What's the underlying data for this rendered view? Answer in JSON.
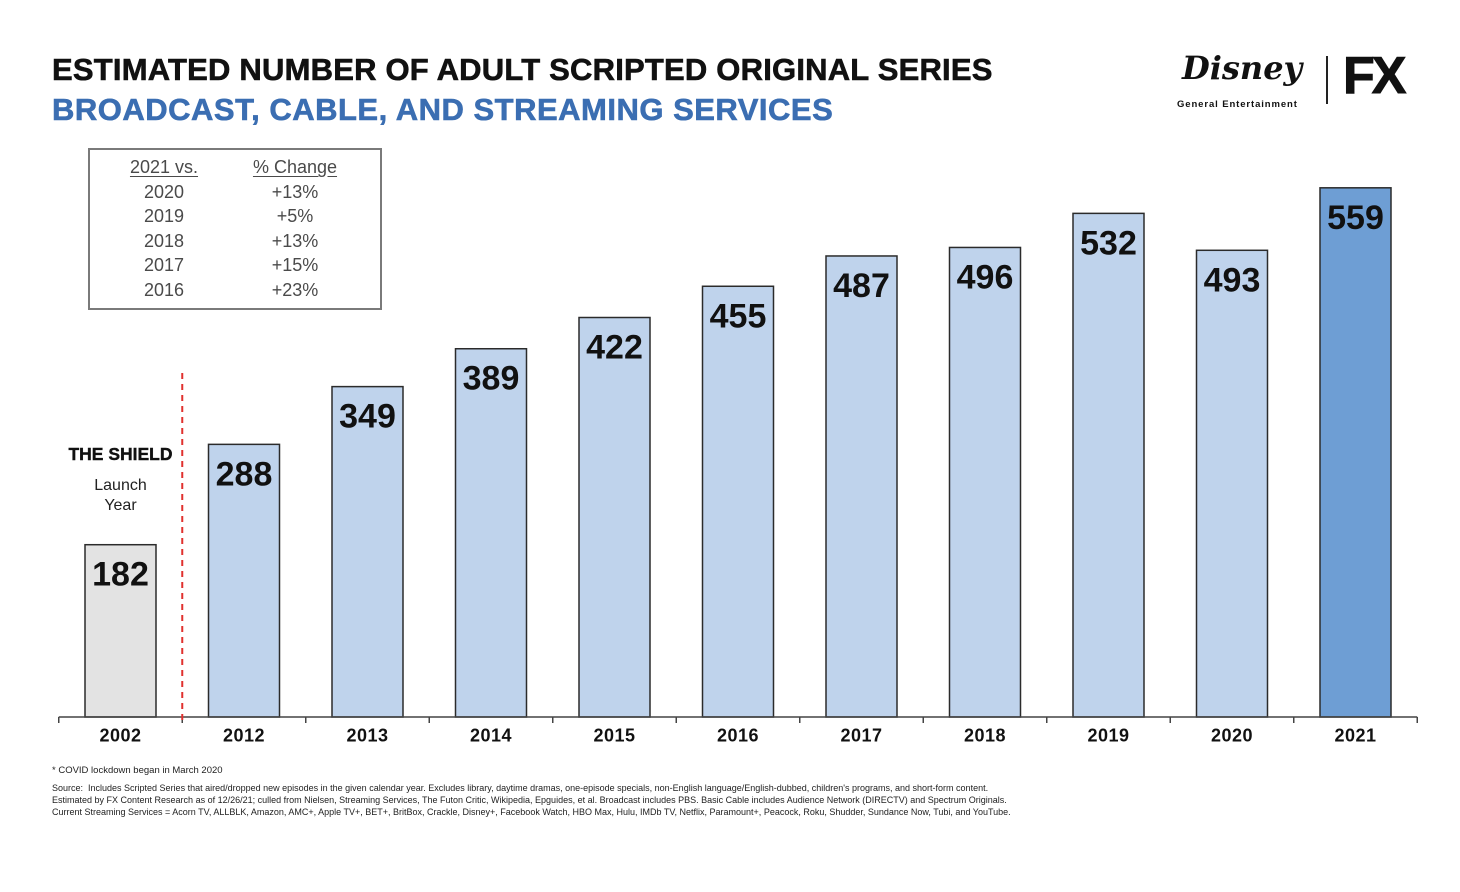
{
  "chart_data": {
    "type": "bar",
    "title": "ESTIMATED NUMBER OF ADULT SCRIPTED ORIGINAL SERIES",
    "subtitle": "BROADCAST, CABLE, AND STREAMING SERVICES",
    "categories": [
      "2002",
      "2012",
      "2013",
      "2014",
      "2015",
      "2016",
      "2017",
      "2018",
      "2019",
      "2020",
      "2021"
    ],
    "values": [
      182,
      288,
      349,
      389,
      422,
      455,
      487,
      496,
      532,
      493,
      559
    ],
    "ylim": [
      0,
      600
    ],
    "grid": false,
    "data_labels": true,
    "y_axis_visible": false,
    "bar_colors": [
      "#e3e3e3",
      "#bfd3ec",
      "#bfd3ec",
      "#bfd3ec",
      "#bfd3ec",
      "#bfd3ec",
      "#bfd3ec",
      "#bfd3ec",
      "#bfd3ec",
      "#bfd3ec",
      "#6e9ed4"
    ],
    "annotation": {
      "title": "THE SHIELD",
      "subtitle_lines": [
        "Launch",
        "Year"
      ]
    }
  },
  "change_table": {
    "headers": [
      "2021 vs.",
      "% Change"
    ],
    "rows": [
      [
        "2020",
        "+13%"
      ],
      [
        "2019",
        "+5%"
      ],
      [
        "2018",
        "+13%"
      ],
      [
        "2017",
        "+15%"
      ],
      [
        "2016",
        "+23%"
      ]
    ]
  },
  "logo": {
    "disney": "Disney",
    "disney_division": "General Entertainment",
    "fx": "FX"
  },
  "footnotes": {
    "covid_note": "* COVID lockdown began in March 2020",
    "source_lines": [
      "Source:  Includes Scripted Series that aired/dropped new episodes in the given calendar year. Excludes library, daytime dramas, one-episode specials, non-English language/English-dubbed, children's programs, and short-form content.",
      "Estimated by FX Content Research as of 12/26/21; culled from Nielsen, Streaming Services, The Futon Critic, Wikipedia, Epguides, et al. Broadcast includes PBS. Basic Cable includes Audience Network (DIRECTV) and Spectrum Originals.",
      "Current Streaming Services = Acorn TV, ALLBLK, Amazon, AMC+, Apple TV+, BET+, BritBox, Crackle, Disney+, Facebook Watch, HBO Max, Hulu, IMDb TV, Netflix, Paramount+, Peacock, Roku, Shudder, Sundance Now, Tubi, and YouTube."
    ]
  },
  "colors": {
    "title": "#111111",
    "subtitle": "#3b6eb2",
    "bar_outline": "#2b2b2b",
    "axis": "#444444",
    "divider": "#e0312e",
    "table_border": "#7a7a7a",
    "table_text": "#4a4a4a"
  }
}
